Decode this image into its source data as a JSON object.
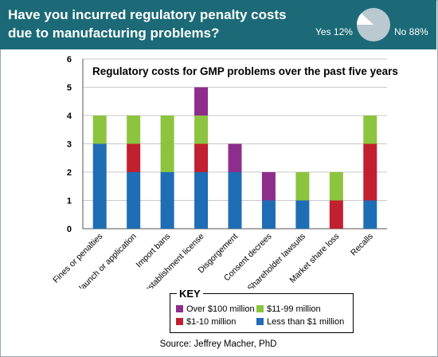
{
  "header": {
    "title": "Have you incurred regulatory penalty costs due to manufacturing problems?"
  },
  "pie": {
    "yes_label": "Yes 12%",
    "no_label": "No 88%",
    "yes_value": 12,
    "no_value": 88,
    "yes_color": "#ffffff",
    "no_color": "#b9c9cf"
  },
  "chart_data": {
    "type": "bar",
    "stacked": true,
    "title": "Regulatory costs for GMP problems over the past five years",
    "xlabel": "",
    "ylabel": "",
    "ylim": [
      0,
      6
    ],
    "yticks": [
      "0",
      "1",
      "2",
      "3",
      "4",
      "5",
      "6"
    ],
    "grid": true,
    "categories": [
      "Fines or penalties",
      "Delayed product launch or application",
      "Import bans",
      "Loss of product or establishment license",
      "Disgorgement",
      "Consent decrees",
      "Shareholder lawsuits",
      "Market share loss",
      "Recalls"
    ],
    "series": [
      {
        "name": "Less than $1 million",
        "color": "#1f6db5",
        "values": [
          3,
          2,
          2,
          2,
          2,
          1,
          1,
          0,
          1
        ]
      },
      {
        "name": "$1-10 million",
        "color": "#c0202f",
        "values": [
          0,
          1,
          0,
          1,
          0,
          0,
          0,
          1,
          2
        ]
      },
      {
        "name": "$11-99 million",
        "color": "#8cc43f",
        "values": [
          1,
          1,
          2,
          1,
          0,
          0,
          1,
          1,
          1
        ]
      },
      {
        "name": "Over $100 million",
        "color": "#8e2e8c",
        "values": [
          0,
          0,
          0,
          1,
          1,
          1,
          0,
          0,
          0
        ]
      }
    ]
  },
  "key": {
    "title": "KEY",
    "items": [
      {
        "label": "Over $100 million",
        "color": "#8e2e8c"
      },
      {
        "label": "$11-99 million",
        "color": "#8cc43f"
      },
      {
        "label": "$1-10 million",
        "color": "#c0202f"
      },
      {
        "label": "Less than $1 million",
        "color": "#1f6db5"
      }
    ]
  },
  "source": "Source: Jeffrey Macher, PhD"
}
